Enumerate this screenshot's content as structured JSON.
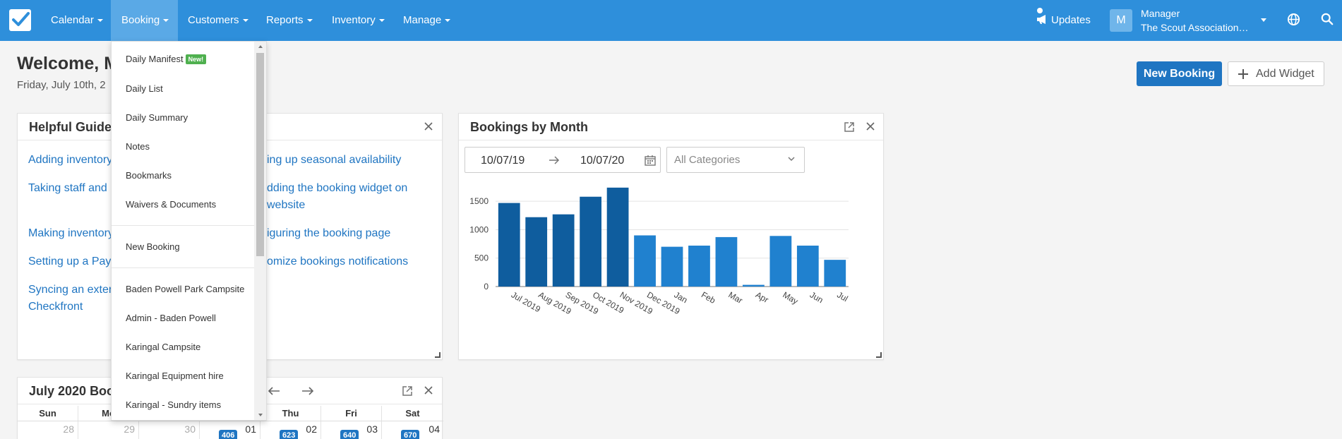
{
  "nav": {
    "items": [
      {
        "label": "Calendar"
      },
      {
        "label": "Booking"
      },
      {
        "label": "Customers"
      },
      {
        "label": "Reports"
      },
      {
        "label": "Inventory"
      },
      {
        "label": "Manage"
      }
    ],
    "active": "Booking",
    "updates_label": "Updates",
    "avatar_initial": "M",
    "user_role": "Manager",
    "user_org": "The Scout Association…"
  },
  "header": {
    "welcome": "Welcome, M",
    "date": "Friday, July 10th, 2",
    "new_booking_label": "New Booking",
    "add_widget_label": "Add Widget"
  },
  "booking_menu": {
    "items": [
      {
        "label": "Daily Manifest",
        "badge": "New!"
      },
      {
        "label": "Daily List"
      },
      {
        "label": "Daily Summary"
      },
      {
        "label": "Notes"
      },
      {
        "label": "Bookmarks"
      },
      {
        "label": "Waivers & Documents"
      },
      {
        "label": "New Booking"
      },
      {
        "label": "Baden Powell Park Campsite"
      },
      {
        "label": "Admin - Baden Powell"
      },
      {
        "label": "Karingal Campsite"
      },
      {
        "label": "Karingal Equipment hire"
      },
      {
        "label": "Karingal - Sundry items"
      }
    ]
  },
  "guides": {
    "title": "Helpful Guides",
    "left": [
      "Adding inventory",
      "Taking staff and",
      "Making inventory",
      "Setting up a Payı",
      "Syncing an exter",
      "Checkfront"
    ],
    "right": [
      "ing up seasonal availability",
      "dding the booking widget on",
      "website",
      "iguring the booking page",
      "omize bookings notifications"
    ]
  },
  "bookings_by_month": {
    "title": "Bookings by Month",
    "date_from": "10/07/19",
    "date_to": "10/07/20",
    "category_placeholder": "All Categories"
  },
  "calendar": {
    "title": "July 2020 Boo",
    "days": [
      "Sun",
      "Mo",
      "",
      "",
      "Thu",
      "Fri",
      "Sat"
    ],
    "week": [
      {
        "day": "28",
        "muted": true,
        "count": ""
      },
      {
        "day": "29",
        "muted": true,
        "count": ""
      },
      {
        "day": "30",
        "muted": true,
        "count": ""
      },
      {
        "day": "01",
        "muted": false,
        "count": "406"
      },
      {
        "day": "02",
        "muted": false,
        "count": "623"
      },
      {
        "day": "03",
        "muted": false,
        "count": "640"
      },
      {
        "day": "04",
        "muted": false,
        "count": "670"
      }
    ]
  },
  "colors": {
    "nav_bg": "#2e8fdb",
    "nav_active": "#5aa9e6",
    "primary": "#1f75c2",
    "bar_dark": "#0f5d9e",
    "bar_light": "#2081cf",
    "badge_green": "#4fb04f"
  },
  "chart_data": {
    "type": "bar",
    "title": "Bookings by Month",
    "categories": [
      "Jul 2019",
      "Aug 2019",
      "Sep 2019",
      "Oct 2019",
      "Nov 2019",
      "Dec 2019",
      "Jan",
      "Feb",
      "Mar",
      "Apr",
      "May",
      "Jun",
      "Jul"
    ],
    "values": [
      1470,
      1220,
      1270,
      1580,
      1740,
      900,
      700,
      720,
      870,
      30,
      890,
      720,
      470
    ],
    "y_ticks": [
      0,
      500,
      1000,
      1500
    ],
    "ylim": [
      0,
      1800
    ],
    "grid": true,
    "legend": "none"
  }
}
